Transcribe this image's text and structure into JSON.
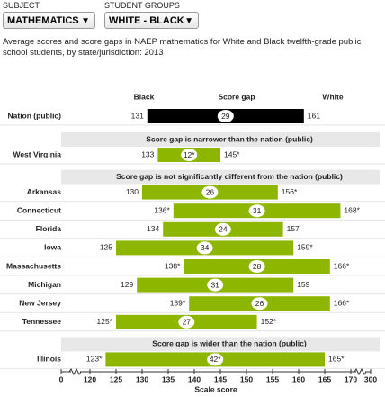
{
  "header": {
    "controls": [
      {
        "label": "SUBJECT",
        "value": "MATHEMATICS"
      },
      {
        "label": "STUDENT GROUPS",
        "value": "WHITE - BLACK"
      }
    ]
  },
  "chart_data": {
    "type": "range_bar",
    "title": "Average scores and score gaps in NAEP mathematics for White and Black twelfth-grade public school students, by state/jurisdiction: 2013",
    "column_headers": [
      "Black",
      "Score gap",
      "White"
    ],
    "xlabel": "Scale score",
    "xticks": [
      0,
      120,
      125,
      130,
      135,
      140,
      145,
      150,
      155,
      160,
      165,
      170,
      300
    ],
    "broken_axis": true,
    "reference_color": "#000000",
    "color": "#8db600",
    "reference": {
      "name": "Nation (public)",
      "low": 131,
      "high": 161,
      "gap": 29
    },
    "groups": [
      {
        "title": "Score gap is narrower than the nation (public)",
        "categories": [
          "West Virginia"
        ],
        "low": {
          "values": [
            133
          ],
          "value_labels": [
            "133"
          ]
        },
        "high": {
          "values": [
            145
          ],
          "value_labels": [
            "145*"
          ]
        },
        "gap": {
          "values": [
            12
          ],
          "value_labels": [
            "12*"
          ]
        }
      },
      {
        "title": "Score gap is not significantly different from the nation (public)",
        "categories": [
          "Arkansas",
          "Connecticut",
          "Florida",
          "Iowa",
          "Massachusetts",
          "Michigan",
          "New Jersey",
          "Tennessee"
        ],
        "low": {
          "values": [
            130,
            136,
            134,
            125,
            138,
            129,
            139,
            125
          ],
          "value_labels": [
            "130",
            "136*",
            "134",
            "125",
            "138*",
            "129",
            "139*",
            "125*"
          ]
        },
        "high": {
          "values": [
            156,
            168,
            157,
            159,
            166,
            159,
            166,
            152
          ],
          "value_labels": [
            "156*",
            "168*",
            "157",
            "159*",
            "166*",
            "159",
            "166*",
            "152*"
          ]
        },
        "gap": {
          "values": [
            26,
            31,
            24,
            34,
            28,
            31,
            26,
            27
          ],
          "value_labels": [
            "26",
            "31",
            "24",
            "34",
            "28",
            "31",
            "26",
            "27"
          ]
        }
      },
      {
        "title": "Score gap is wider than the nation (public)",
        "categories": [
          "Illinois"
        ],
        "low": {
          "values": [
            123
          ],
          "value_labels": [
            "123*"
          ]
        },
        "high": {
          "values": [
            165
          ],
          "value_labels": [
            "165*"
          ]
        },
        "gap": {
          "values": [
            42
          ],
          "value_labels": [
            "42*"
          ]
        }
      }
    ]
  }
}
